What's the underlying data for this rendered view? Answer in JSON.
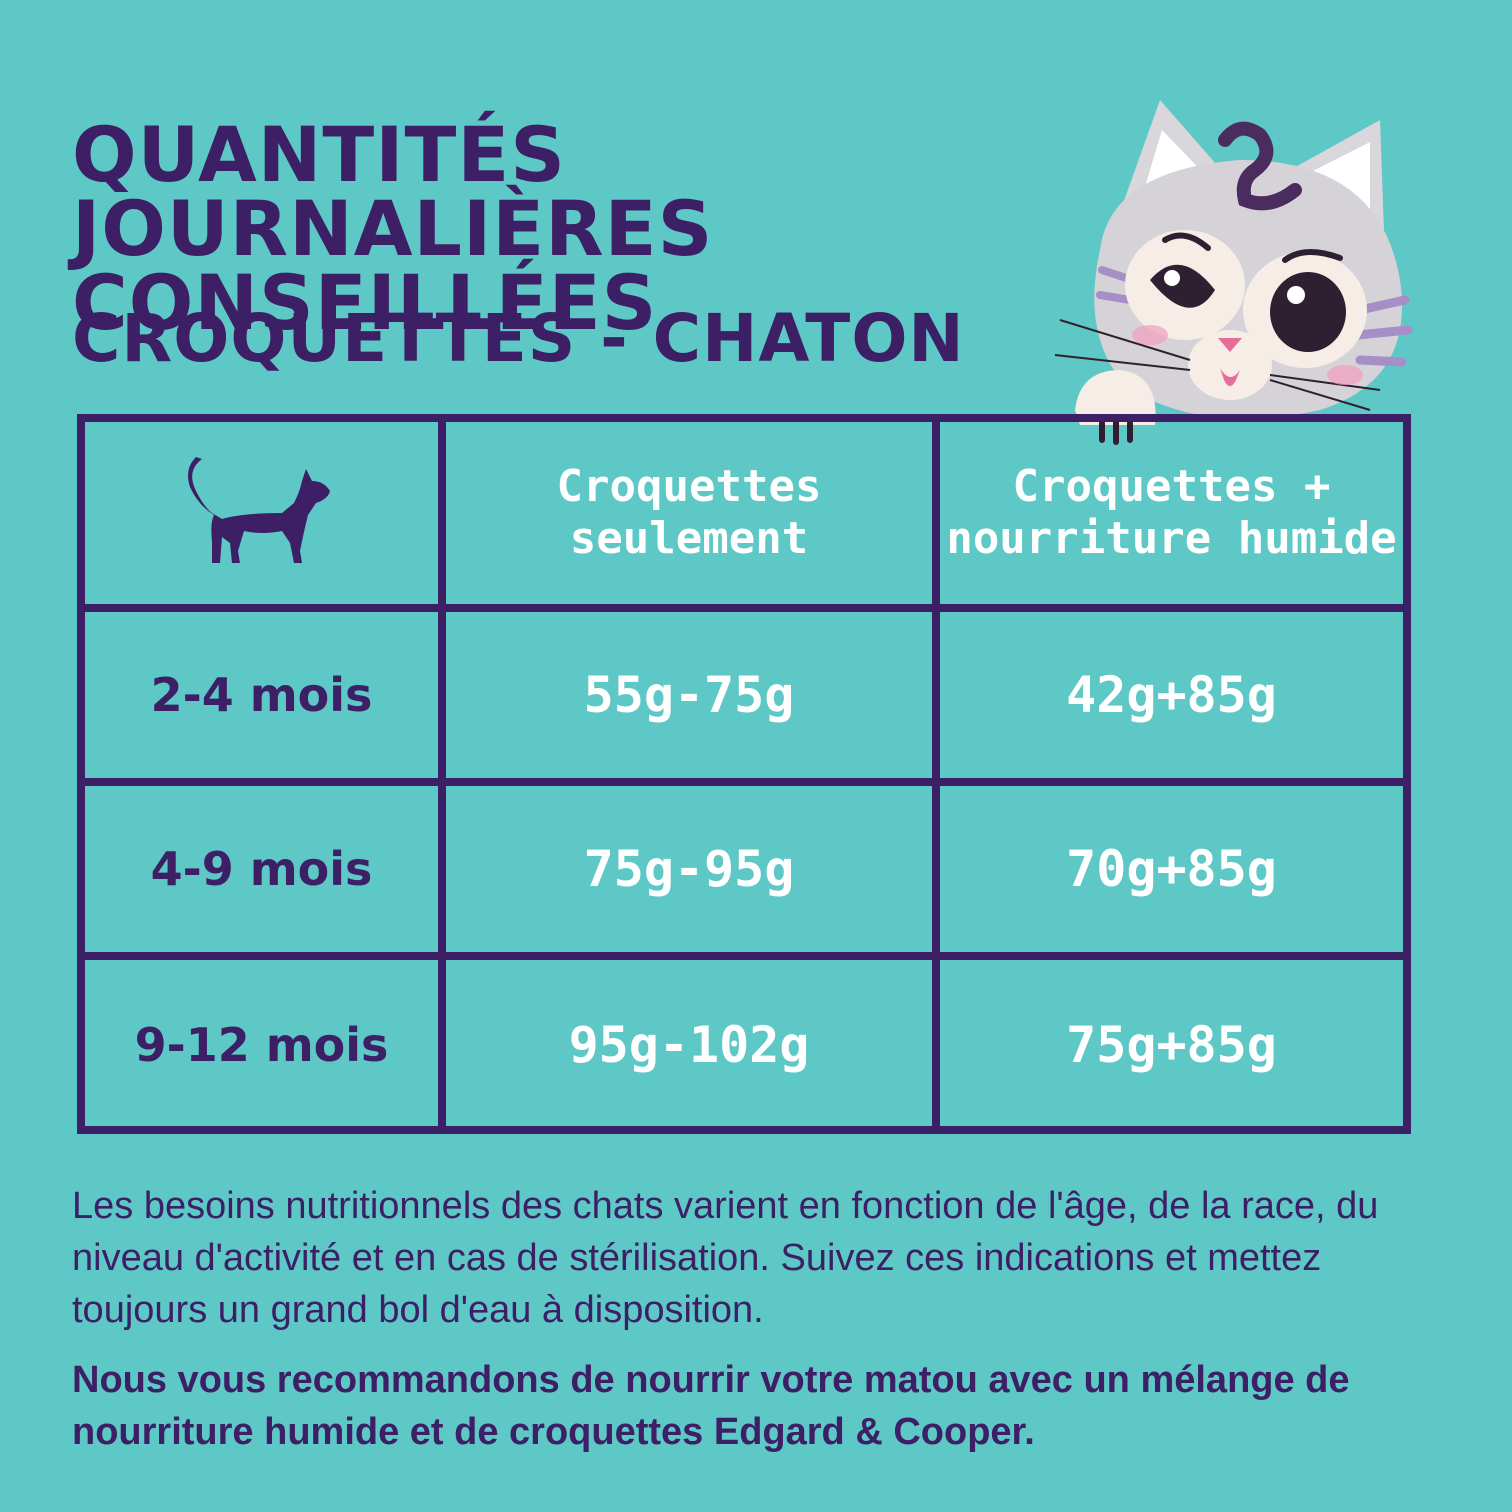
{
  "header": {
    "title": "QUANTITÉS JOURNALIÈRES CONSEILLÉES",
    "subtitle": "CROQUETTES - CHATON"
  },
  "table": {
    "header_icon": "cat-silhouette-icon",
    "columns": [
      "Croquettes\nseulement",
      "Croquettes +\nnourriture humide"
    ],
    "rows": [
      {
        "age": "2-4 mois",
        "dry_only": "55g-75g",
        "dry_plus_wet": "42g+85g"
      },
      {
        "age": "4-9 mois",
        "dry_only": "75g-95g",
        "dry_plus_wet": "70g+85g"
      },
      {
        "age": "9-12 mois",
        "dry_only": "95g-102g",
        "dry_plus_wet": "75g+85g"
      }
    ]
  },
  "notes": {
    "needs": "Les besoins nutritionnels des chats varient en fonction de l'âge, de la race, du niveau d'activité et en cas de stérilisation. Suivez ces indications et mettez toujours un grand bol d'eau à disposition.",
    "recommendation": "Nous vous recommandons de nourrir votre matou avec un mélange de nourriture humide et de croquettes Edgard & Cooper."
  },
  "colors": {
    "background": "#5ec8c6",
    "primary": "#3d1f66",
    "cell_text": "#ffffff"
  }
}
